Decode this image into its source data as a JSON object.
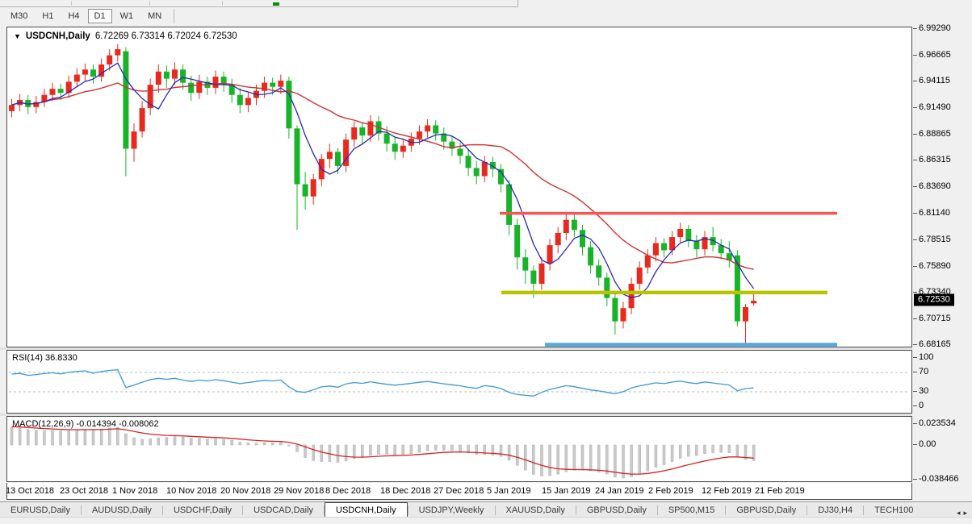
{
  "toolbar": {
    "timeframes": [
      {
        "label": "M30",
        "active": false
      },
      {
        "label": "H1",
        "active": false
      },
      {
        "label": "H4",
        "active": false
      },
      {
        "label": "D1",
        "active": true
      },
      {
        "label": "W1",
        "active": false
      },
      {
        "label": "MN",
        "active": false
      }
    ]
  },
  "chart": {
    "title": {
      "symbol": "USDCNH,Daily",
      "ohlc": "6.72269 6.73314 6.72024 6.72530"
    },
    "price_axis": {
      "labels": [
        "6.99290",
        "6.96665",
        "6.94115",
        "6.91490",
        "6.88865",
        "6.86315",
        "6.83690",
        "6.81140",
        "6.78515",
        "6.75890",
        "6.73340",
        "6.70715",
        "6.68165"
      ],
      "current": "6.72530",
      "max": 6.9929,
      "min": 6.68165
    }
  },
  "rsi": {
    "label": "RSI(14)",
    "value": "36.8330",
    "axis_labels": [
      "100",
      "70",
      "30",
      "0"
    ],
    "axis_values": [
      100,
      70,
      30,
      0
    ],
    "guides": [
      70,
      30
    ]
  },
  "macd": {
    "label": "MACD(12,26,9)",
    "values": "-0.014394 -0.008062",
    "axis_labels": [
      "0.023534",
      "0.00",
      "-0.038466"
    ],
    "axis_values": [
      0.023534,
      0,
      -0.038466
    ]
  },
  "date_axis": {
    "labels": [
      "13 Oct 2018",
      "23 Oct 2018",
      "1 Nov 2018",
      "10 Nov 2018",
      "20 Nov 2018",
      "29 Nov 2018",
      "8 Dec 2018",
      "18 Dec 2018",
      "27 Dec 2018",
      "5 Jan 2019",
      "15 Jan 2019",
      "24 Jan 2019",
      "2 Feb 2019",
      "12 Feb 2019",
      "21 Feb 2019"
    ],
    "positions": [
      4,
      71,
      136,
      203,
      270,
      336,
      400,
      468,
      534,
      600,
      668,
      734,
      800,
      866,
      932
    ]
  },
  "tabs": {
    "items": [
      {
        "label": "EURUSD,Daily",
        "active": false
      },
      {
        "label": "AUDUSD,Daily",
        "active": false
      },
      {
        "label": "USDCHF,Daily",
        "active": false
      },
      {
        "label": "USDCAD,Daily",
        "active": false
      },
      {
        "label": "USDCNH,Daily",
        "active": true
      },
      {
        "label": "USDJPY,Weekly",
        "active": false
      },
      {
        "label": "XAUUSD,Daily",
        "active": false
      },
      {
        "label": "GBPUSD,Daily",
        "active": false
      },
      {
        "label": "SP500,M15",
        "active": false
      },
      {
        "label": "GBPUSD,Daily",
        "active": false
      },
      {
        "label": "DJ30,H4",
        "active": false
      },
      {
        "label": "TECH100",
        "active": false
      }
    ],
    "scroll_left": "◂",
    "scroll_right": "▸"
  },
  "colors": {
    "up_candle": "#e8291e",
    "down_candle": "#17b42a",
    "ma_fast_blue": "#2929b8",
    "ma_slow_red": "#d03232",
    "rsi_line": "#3d97dc",
    "macd_signal": "#d82020",
    "macd_hist": "#c9c9c9",
    "level_red": "#fa5353",
    "level_yellow": "#b9c400",
    "level_blue": "#55a8dc",
    "price_tag_bg": "#000000"
  },
  "chart_data": [
    {
      "type": "candlestick",
      "title": "USDCNH,Daily",
      "ylim": [
        6.68165,
        6.9929
      ],
      "x_labels": [
        "13 Oct 2018",
        "23 Oct 2018",
        "1 Nov 2018",
        "10 Nov 2018",
        "20 Nov 2018",
        "29 Nov 2018",
        "8 Dec 2018",
        "18 Dec 2018",
        "27 Dec 2018",
        "5 Jan 2019",
        "15 Jan 2019",
        "24 Jan 2019",
        "2 Feb 2019",
        "12 Feb 2019",
        "21 Feb 2019"
      ],
      "note": "red = bullish close>=open, green = bearish close<open; last bar OHLC shown in title",
      "candles": [
        [
          6.912,
          6.924,
          6.906,
          6.918
        ],
        [
          6.918,
          6.929,
          6.912,
          6.923
        ],
        [
          6.923,
          6.928,
          6.909,
          6.916
        ],
        [
          6.916,
          6.927,
          6.91,
          6.921
        ],
        [
          6.921,
          6.934,
          6.916,
          6.928
        ],
        [
          6.928,
          6.94,
          6.922,
          6.934
        ],
        [
          6.934,
          6.939,
          6.923,
          6.93
        ],
        [
          6.93,
          6.947,
          6.925,
          6.941
        ],
        [
          6.941,
          6.954,
          6.936,
          6.948
        ],
        [
          6.948,
          6.959,
          6.942,
          6.953
        ],
        [
          6.953,
          6.958,
          6.939,
          6.946
        ],
        [
          6.946,
          6.964,
          6.941,
          6.958
        ],
        [
          6.958,
          6.973,
          6.952,
          6.967
        ],
        [
          6.967,
          6.978,
          6.961,
          6.973
        ],
        [
          6.971,
          6.975,
          6.848,
          6.875
        ],
        [
          6.875,
          6.9,
          6.862,
          6.892
        ],
        [
          6.892,
          6.922,
          6.886,
          6.915
        ],
        [
          6.915,
          6.944,
          6.908,
          6.938
        ],
        [
          6.938,
          6.958,
          6.93,
          6.951
        ],
        [
          6.951,
          6.957,
          6.935,
          6.944
        ],
        [
          6.944,
          6.96,
          6.938,
          6.953
        ],
        [
          6.953,
          6.958,
          6.933,
          6.94
        ],
        [
          6.94,
          6.947,
          6.922,
          6.93
        ],
        [
          6.93,
          6.948,
          6.924,
          6.941
        ],
        [
          6.941,
          6.946,
          6.928,
          6.935
        ],
        [
          6.935,
          6.952,
          6.929,
          6.946
        ],
        [
          6.946,
          6.951,
          6.931,
          6.938
        ],
        [
          6.938,
          6.944,
          6.92,
          6.928
        ],
        [
          6.928,
          6.935,
          6.91,
          6.918
        ],
        [
          6.918,
          6.931,
          6.911,
          6.925
        ],
        [
          6.925,
          6.938,
          6.918,
          6.932
        ],
        [
          6.932,
          6.946,
          6.925,
          6.94
        ],
        [
          6.94,
          6.945,
          6.928,
          6.936
        ],
        [
          6.936,
          6.948,
          6.929,
          6.942
        ],
        [
          6.942,
          6.946,
          6.885,
          6.895
        ],
        [
          6.895,
          6.898,
          6.795,
          6.84
        ],
        [
          6.84,
          6.852,
          6.815,
          6.828
        ],
        [
          6.828,
          6.85,
          6.82,
          6.845
        ],
        [
          6.845,
          6.87,
          6.838,
          6.865
        ],
        [
          6.865,
          6.88,
          6.856,
          6.872
        ],
        [
          6.872,
          6.876,
          6.85,
          6.858
        ],
        [
          6.858,
          6.89,
          6.852,
          6.884
        ],
        [
          6.884,
          6.902,
          6.877,
          6.896
        ],
        [
          6.896,
          6.901,
          6.88,
          6.888
        ],
        [
          6.888,
          6.908,
          6.882,
          6.902
        ],
        [
          6.902,
          6.907,
          6.883,
          6.89
        ],
        [
          6.89,
          6.897,
          6.872,
          6.88
        ],
        [
          6.88,
          6.887,
          6.864,
          6.872
        ],
        [
          6.872,
          6.884,
          6.866,
          6.878
        ],
        [
          6.878,
          6.891,
          6.872,
          6.885
        ],
        [
          6.885,
          6.898,
          6.879,
          6.892
        ],
        [
          6.892,
          6.904,
          6.886,
          6.898
        ],
        [
          6.898,
          6.903,
          6.883,
          6.89
        ],
        [
          6.89,
          6.896,
          6.874,
          6.882
        ],
        [
          6.882,
          6.888,
          6.868,
          6.875
        ],
        [
          6.875,
          6.881,
          6.86,
          6.868
        ],
        [
          6.868,
          6.874,
          6.848,
          6.856
        ],
        [
          6.856,
          6.863,
          6.84,
          6.848
        ],
        [
          6.848,
          6.868,
          6.842,
          6.862
        ],
        [
          6.862,
          6.867,
          6.847,
          6.855
        ],
        [
          6.855,
          6.86,
          6.832,
          6.84
        ],
        [
          6.84,
          6.844,
          6.79,
          6.8
        ],
        [
          6.8,
          6.806,
          6.756,
          6.768
        ],
        [
          6.768,
          6.776,
          6.742,
          6.755
        ],
        [
          6.755,
          6.76,
          6.728,
          6.742
        ],
        [
          6.742,
          6.768,
          6.736,
          6.762
        ],
        [
          6.762,
          6.786,
          6.755,
          6.78
        ],
        [
          6.78,
          6.798,
          6.772,
          6.792
        ],
        [
          6.792,
          6.812,
          6.785,
          6.805
        ],
        [
          6.805,
          6.81,
          6.788,
          6.795
        ],
        [
          6.795,
          6.8,
          6.77,
          6.778
        ],
        [
          6.778,
          6.784,
          6.752,
          6.76
        ],
        [
          6.76,
          6.766,
          6.74,
          6.748
        ],
        [
          6.748,
          6.753,
          6.72,
          6.728
        ],
        [
          6.728,
          6.733,
          6.692,
          6.705
        ],
        [
          6.705,
          6.724,
          6.698,
          6.718
        ],
        [
          6.718,
          6.748,
          6.712,
          6.742
        ],
        [
          6.742,
          6.764,
          6.736,
          6.758
        ],
        [
          6.758,
          6.776,
          6.752,
          6.77
        ],
        [
          6.77,
          6.788,
          6.764,
          6.782
        ],
        [
          6.782,
          6.787,
          6.768,
          6.775
        ],
        [
          6.775,
          6.794,
          6.77,
          6.788
        ],
        [
          6.788,
          6.802,
          6.782,
          6.796
        ],
        [
          6.796,
          6.8,
          6.778,
          6.784
        ],
        [
          6.784,
          6.79,
          6.768,
          6.776
        ],
        [
          6.776,
          6.794,
          6.77,
          6.788
        ],
        [
          6.788,
          6.798,
          6.774,
          6.78
        ],
        [
          6.78,
          6.786,
          6.766,
          6.772
        ],
        [
          6.772,
          6.784,
          6.758,
          6.765
        ],
        [
          6.77,
          6.775,
          6.7,
          6.705
        ],
        [
          6.705,
          6.722,
          6.682,
          6.719
        ],
        [
          6.72269,
          6.73314,
          6.72024,
          6.7253
        ]
      ],
      "moving_averages": [
        {
          "name": "fast",
          "period": 5,
          "color": "#2929b8"
        },
        {
          "name": "slow",
          "period": 20,
          "color": "#d03232"
        }
      ],
      "levels": [
        {
          "name": "resistance",
          "price": 6.8114,
          "color": "#fa5353",
          "x_from": 610,
          "x_to": 1028
        },
        {
          "name": "support-mid",
          "price": 6.7334,
          "color": "#b9c400",
          "x_from": 612,
          "x_to": 1016
        },
        {
          "name": "support-low",
          "price": 6.682,
          "color": "#55a8dc",
          "x_from": 666,
          "x_to": 1028
        }
      ]
    },
    {
      "type": "line",
      "name": "RSI(14)",
      "current_value": 36.833,
      "range": [
        0,
        100
      ],
      "guides": [
        70,
        30
      ],
      "legend_position": "top-left"
    },
    {
      "type": "bar",
      "name": "MACD(12,26,9)",
      "macd_value": -0.014394,
      "signal_value": -0.008062,
      "ylim": [
        -0.038466,
        0.023534
      ],
      "legend_position": "top-left"
    }
  ]
}
